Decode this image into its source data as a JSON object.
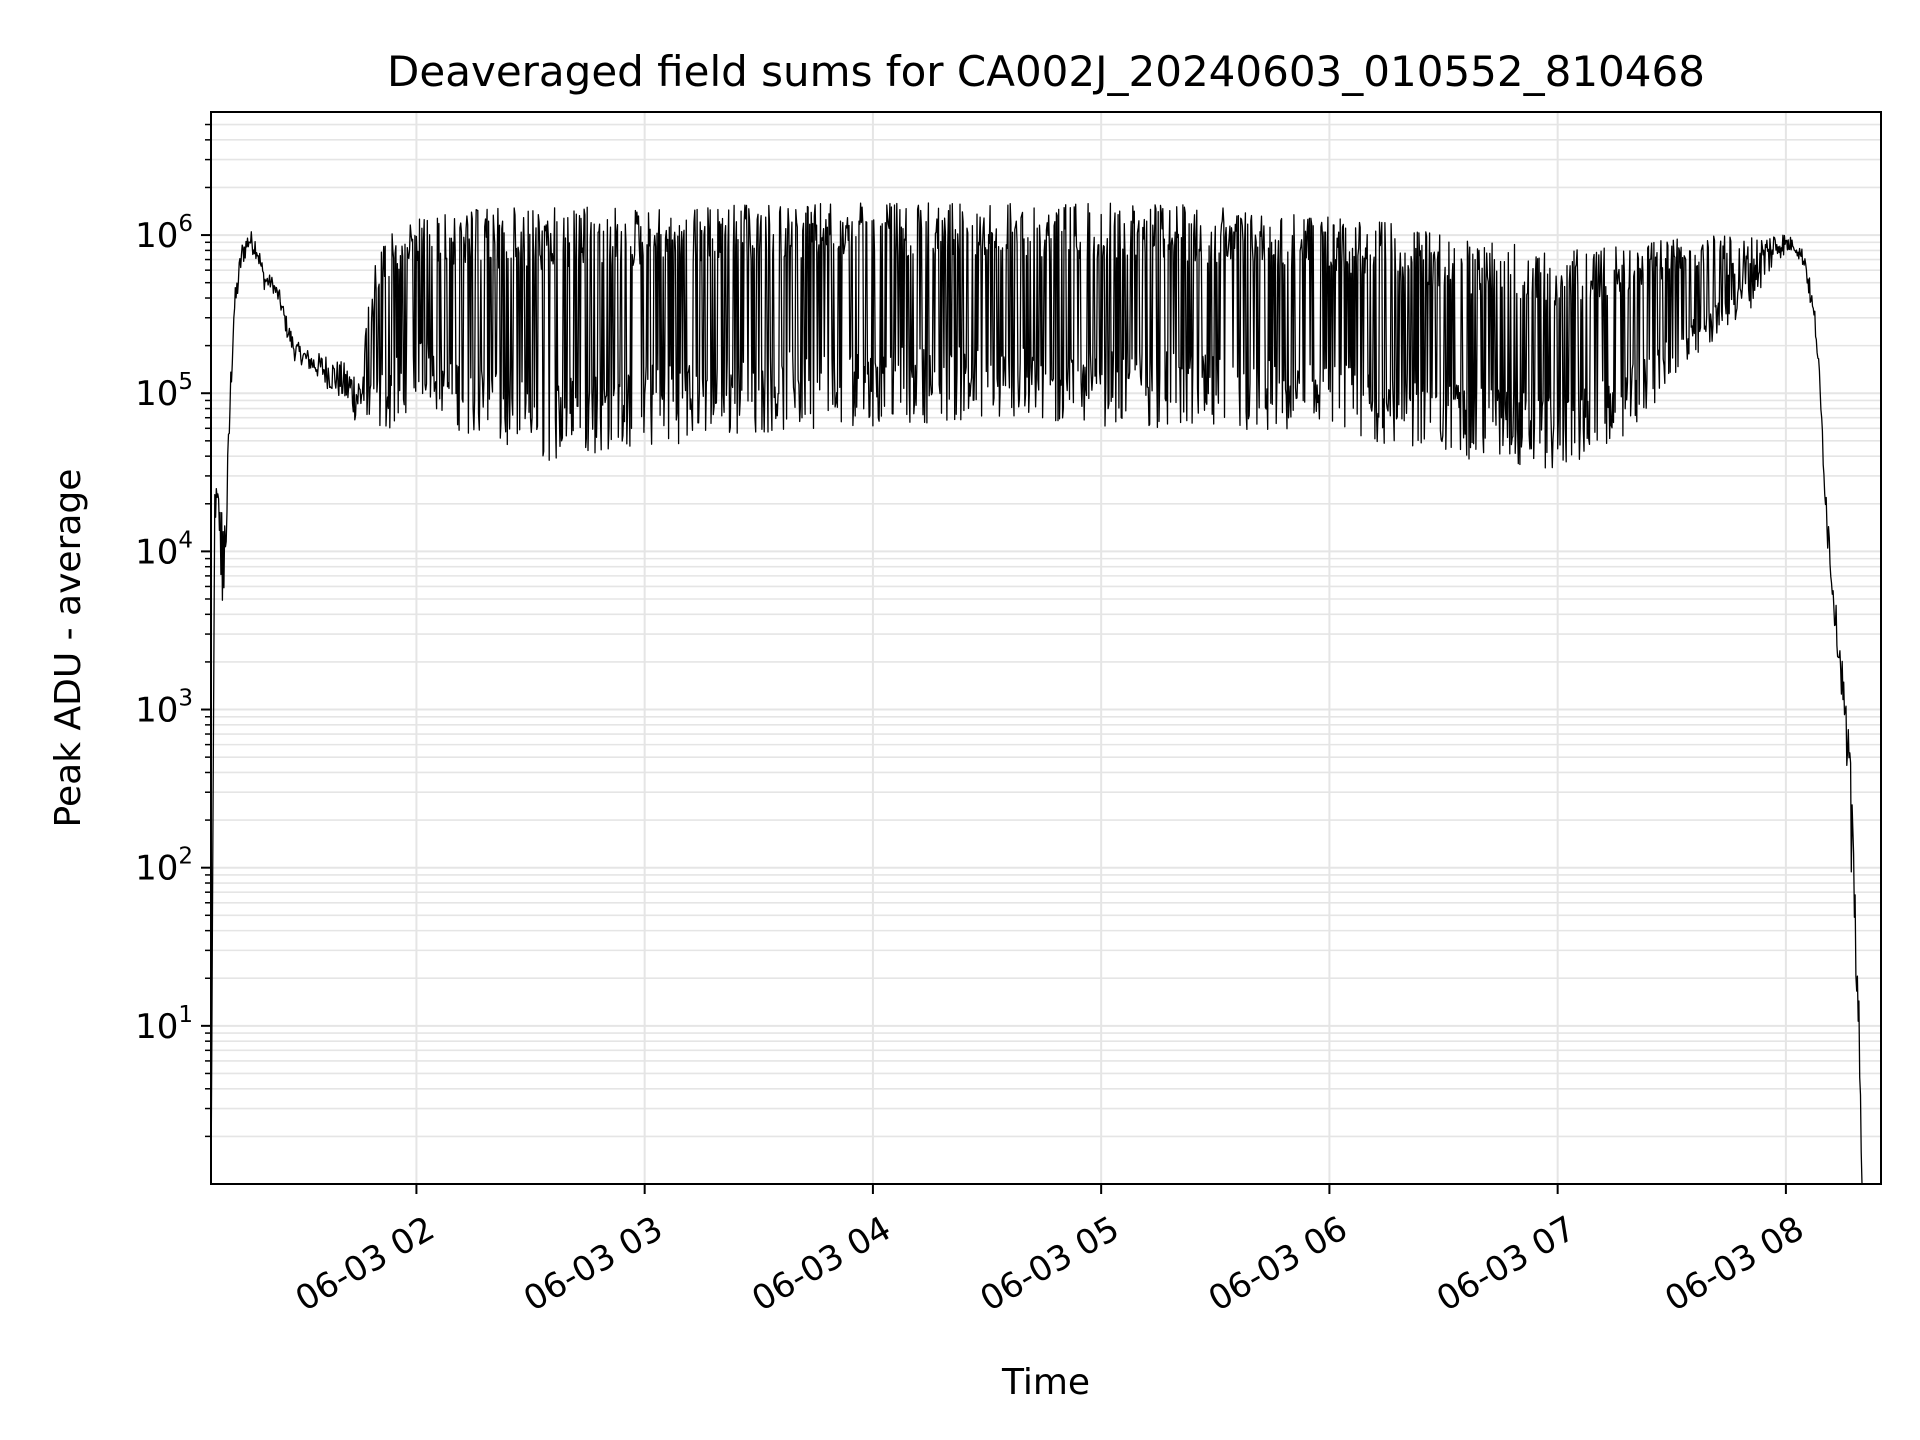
{
  "chart_data": {
    "type": "line",
    "title": "Deaveraged field sums for CA002J_20240603_010552_810468",
    "xlabel": "Time",
    "ylabel": "Peak ADU - average",
    "yscale": "log",
    "xlim": [
      "2024-06-03 01:06",
      "2024-06-03 08:25"
    ],
    "ylim": [
      1,
      6000000
    ],
    "grid": true,
    "line_color": "#000000",
    "grid_color": "#e5e5e5",
    "x_ticks": [
      {
        "t": "2024-06-03 02:00",
        "label": "06-03 02"
      },
      {
        "t": "2024-06-03 03:00",
        "label": "06-03 03"
      },
      {
        "t": "2024-06-03 04:00",
        "label": "06-03 04"
      },
      {
        "t": "2024-06-03 05:00",
        "label": "06-03 05"
      },
      {
        "t": "2024-06-03 06:00",
        "label": "06-03 06"
      },
      {
        "t": "2024-06-03 07:00",
        "label": "06-03 07"
      },
      {
        "t": "2024-06-03 08:00",
        "label": "06-03 08"
      }
    ],
    "y_ticks": [
      {
        "value": 10,
        "base": "10",
        "exp": "1"
      },
      {
        "value": 100,
        "base": "10",
        "exp": "2"
      },
      {
        "value": 1000,
        "base": "10",
        "exp": "3"
      },
      {
        "value": 10000,
        "base": "10",
        "exp": "4"
      },
      {
        "value": 100000,
        "base": "10",
        "exp": "5"
      },
      {
        "value": 1000000,
        "base": "10",
        "exp": "6"
      }
    ],
    "series": [
      {
        "t": [
          "2024-06-03 01:06",
          "2024-06-03 01:07",
          "2024-06-03 01:08",
          "2024-06-03 01:09",
          "2024-06-03 01:10",
          "2024-06-03 01:11",
          "2024-06-03 01:12",
          "2024-06-03 01:14",
          "2024-06-03 01:16",
          "2024-06-03 01:18",
          "2024-06-03 01:20",
          "2024-06-03 01:22",
          "2024-06-03 01:24",
          "2024-06-03 01:26",
          "2024-06-03 01:28",
          "2024-06-03 01:30",
          "2024-06-03 01:33",
          "2024-06-03 01:36",
          "2024-06-03 01:40",
          "2024-06-03 01:45",
          "2024-06-03 01:50",
          "2024-06-03 01:55",
          "2024-06-03 02:00",
          "2024-06-03 02:10",
          "2024-06-03 02:20",
          "2024-06-03 02:30",
          "2024-06-03 02:40",
          "2024-06-03 02:50",
          "2024-06-03 03:00",
          "2024-06-03 03:15",
          "2024-06-03 03:30",
          "2024-06-03 03:45",
          "2024-06-03 04:00",
          "2024-06-03 04:15",
          "2024-06-03 04:30",
          "2024-06-03 04:45",
          "2024-06-03 05:00",
          "2024-06-03 05:15",
          "2024-06-03 05:30",
          "2024-06-03 05:45",
          "2024-06-03 06:00",
          "2024-06-03 06:15",
          "2024-06-03 06:30",
          "2024-06-03 06:45",
          "2024-06-03 07:00",
          "2024-06-03 07:10",
          "2024-06-03 07:20",
          "2024-06-03 07:30",
          "2024-06-03 07:40",
          "2024-06-03 07:50",
          "2024-06-03 07:58",
          "2024-06-03 08:02",
          "2024-06-03 08:05",
          "2024-06-03 08:08",
          "2024-06-03 08:11",
          "2024-06-03 08:13",
          "2024-06-03 08:15",
          "2024-06-03 08:17",
          "2024-06-03 08:19",
          "2024-06-03 08:20",
          "2024-06-03 08:21"
        ],
        "lower": [
          1,
          15000,
          14000,
          3000,
          9000,
          60000,
          250000,
          600000,
          800000,
          700000,
          450000,
          450000,
          350000,
          220000,
          160000,
          150000,
          130000,
          110000,
          90000,
          60000,
          55000,
          60000,
          100000,
          60000,
          45000,
          35000,
          38000,
          42000,
          45000,
          50000,
          55000,
          60000,
          62000,
          65000,
          65000,
          60000,
          62000,
          60000,
          55000,
          52000,
          50000,
          45000,
          40000,
          35000,
          32000,
          40000,
          60000,
          110000,
          200000,
          320000,
          700000,
          800000,
          600000,
          200000,
          10000,
          3000,
          1000,
          100,
          10,
          1,
          1
        ],
        "upper": [
          1,
          28000,
          25000,
          18000,
          22000,
          120000,
          400000,
          900000,
          1100000,
          1000000,
          600000,
          550000,
          450000,
          300000,
          220000,
          200000,
          180000,
          180000,
          160000,
          150000,
          900000,
          1200000,
          1300000,
          1400000,
          1500000,
          1500000,
          1500000,
          1500000,
          1500000,
          1550000,
          1550000,
          1600000,
          1600000,
          1600000,
          1600000,
          1600000,
          1600000,
          1600000,
          1500000,
          1400000,
          1300000,
          1200000,
          1000000,
          900000,
          800000,
          850000,
          900000,
          950000,
          1000000,
          1000000,
          1100000,
          950000,
          800000,
          300000,
          20000,
          5000,
          2000,
          500,
          30,
          1,
          1
        ]
      }
    ]
  }
}
